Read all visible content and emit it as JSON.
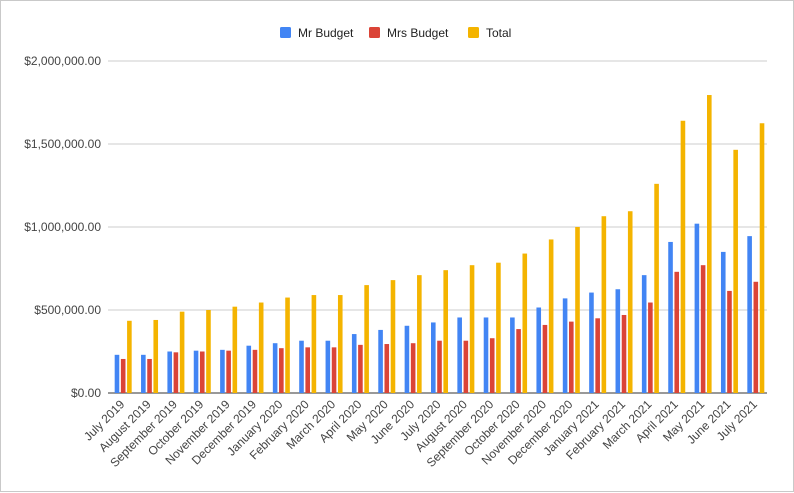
{
  "chart_data": {
    "type": "bar",
    "title": "",
    "xlabel": "",
    "ylabel": "",
    "ylim": [
      0,
      2000000
    ],
    "grid": true,
    "legend_position": "top",
    "y_ticks": [
      "$0.00",
      "$500,000.00",
      "$1,000,000.00",
      "$1,500,000.00",
      "$2,000,000.00"
    ],
    "categories": [
      "July 2019",
      "August 2019",
      "September 2019",
      "October 2019",
      "November 2019",
      "December 2019",
      "January 2020",
      "February 2020",
      "March 2020",
      "April 2020",
      "May 2020",
      "June 2020",
      "July 2020",
      "August 2020",
      "September 2020",
      "October 2020",
      "November 2020",
      "December 2020",
      "January 2021",
      "February 2021",
      "March 2021",
      "April 2021",
      "May 2021",
      "June 2021",
      "July 2021"
    ],
    "series": [
      {
        "name": "Mr Budget",
        "color": "#4285f4",
        "values": [
          230000,
          230000,
          250000,
          255000,
          260000,
          285000,
          300000,
          315000,
          315000,
          355000,
          380000,
          405000,
          425000,
          455000,
          455000,
          455000,
          515000,
          570000,
          605000,
          625000,
          710000,
          910000,
          1020000,
          850000,
          945000
        ]
      },
      {
        "name": "Mrs Budget",
        "color": "#db4437",
        "values": [
          205000,
          205000,
          245000,
          250000,
          255000,
          260000,
          270000,
          275000,
          275000,
          290000,
          295000,
          300000,
          315000,
          315000,
          330000,
          385000,
          410000,
          430000,
          450000,
          470000,
          545000,
          730000,
          770000,
          615000,
          670000
        ]
      },
      {
        "name": "Total",
        "color": "#f4b400",
        "values": [
          435000,
          440000,
          490000,
          500000,
          520000,
          545000,
          575000,
          590000,
          590000,
          650000,
          680000,
          710000,
          740000,
          770000,
          785000,
          840000,
          925000,
          1000000,
          1065000,
          1095000,
          1260000,
          1640000,
          1795000,
          1465000,
          1625000
        ]
      }
    ]
  }
}
